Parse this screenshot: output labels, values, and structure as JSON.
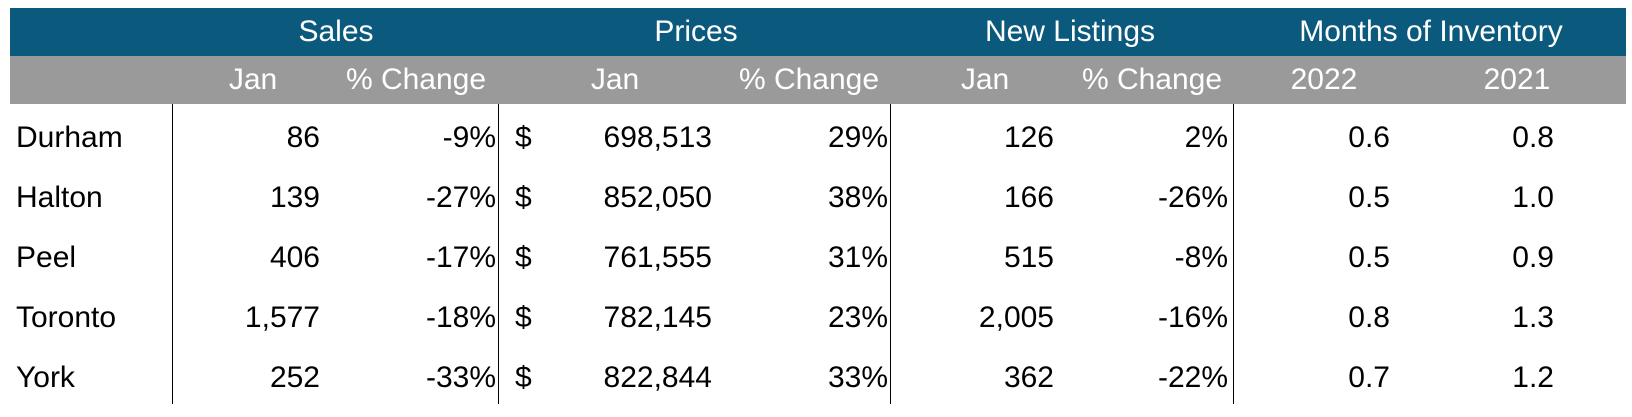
{
  "groups": {
    "sales": "Sales",
    "prices": "Prices",
    "new_listings": "New Listings",
    "months_inventory": "Months of Inventory"
  },
  "subheaders": {
    "sales_jan": "Jan",
    "sales_change": "% Change",
    "prices_jan": "Jan",
    "prices_change": "% Change",
    "listings_jan": "Jan",
    "listings_change": "% Change",
    "inv_2022": "2022",
    "inv_2021": "2021"
  },
  "currency_symbol": "$",
  "rows": [
    {
      "region": "Durham",
      "sales_jan": "86",
      "sales_change": "-9%",
      "price_jan": "698,513",
      "price_change": "29%",
      "listings_jan": "126",
      "listings_change": "2%",
      "inv_2022": "0.6",
      "inv_2021": "0.8"
    },
    {
      "region": "Halton",
      "sales_jan": "139",
      "sales_change": "-27%",
      "price_jan": "852,050",
      "price_change": "38%",
      "listings_jan": "166",
      "listings_change": "-26%",
      "inv_2022": "0.5",
      "inv_2021": "1.0"
    },
    {
      "region": "Peel",
      "sales_jan": "406",
      "sales_change": "-17%",
      "price_jan": "761,555",
      "price_change": "31%",
      "listings_jan": "515",
      "listings_change": "-8%",
      "inv_2022": "0.5",
      "inv_2021": "0.9"
    },
    {
      "region": "Toronto",
      "sales_jan": "1,577",
      "sales_change": "-18%",
      "price_jan": "782,145",
      "price_change": "23%",
      "listings_jan": "2,005",
      "listings_change": "-16%",
      "inv_2022": "0.8",
      "inv_2021": "1.3"
    },
    {
      "region": "York",
      "sales_jan": "252",
      "sales_change": "-33%",
      "price_jan": "822,844",
      "price_change": "33%",
      "listings_jan": "362",
      "listings_change": "-22%",
      "inv_2022": "0.7",
      "inv_2021": "1.2"
    }
  ]
}
